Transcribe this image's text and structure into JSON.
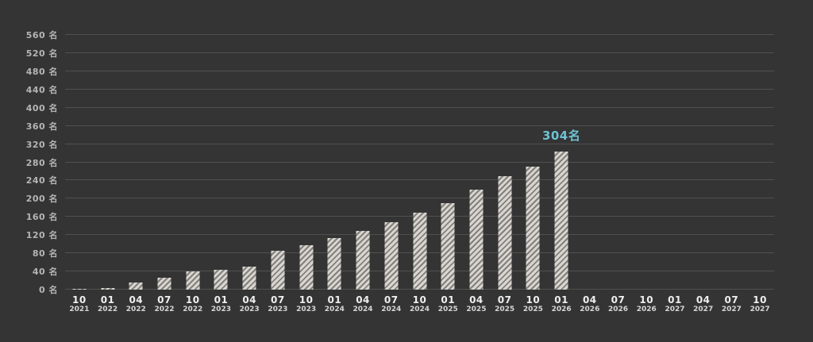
{
  "chart_data": {
    "type": "bar",
    "title": "",
    "xlabel": "",
    "ylabel": "",
    "y_unit": "名",
    "ylim": [
      0,
      560
    ],
    "yticks": [
      0,
      40,
      80,
      120,
      160,
      200,
      240,
      280,
      320,
      360,
      400,
      440,
      480,
      520,
      560
    ],
    "grid": true,
    "legend": false,
    "categories": [
      {
        "month": "10",
        "year": "2021"
      },
      {
        "month": "01",
        "year": "2022"
      },
      {
        "month": "04",
        "year": "2022"
      },
      {
        "month": "07",
        "year": "2022"
      },
      {
        "month": "10",
        "year": "2022"
      },
      {
        "month": "01",
        "year": "2023"
      },
      {
        "month": "04",
        "year": "2023"
      },
      {
        "month": "07",
        "year": "2023"
      },
      {
        "month": "10",
        "year": "2023"
      },
      {
        "month": "01",
        "year": "2024"
      },
      {
        "month": "04",
        "year": "2024"
      },
      {
        "month": "07",
        "year": "2024"
      },
      {
        "month": "10",
        "year": "2024"
      },
      {
        "month": "01",
        "year": "2025"
      },
      {
        "month": "04",
        "year": "2025"
      },
      {
        "month": "07",
        "year": "2025"
      },
      {
        "month": "10",
        "year": "2025"
      },
      {
        "month": "01",
        "year": "2026"
      },
      {
        "month": "04",
        "year": "2026"
      },
      {
        "month": "07",
        "year": "2026"
      },
      {
        "month": "10",
        "year": "2026"
      },
      {
        "month": "01",
        "year": "2027"
      },
      {
        "month": "04",
        "year": "2027"
      },
      {
        "month": "07",
        "year": "2027"
      },
      {
        "month": "10",
        "year": "2027"
      }
    ],
    "values": [
      1,
      3,
      15,
      26,
      40,
      44,
      50,
      85,
      98,
      114,
      129,
      148,
      169,
      191,
      220,
      249,
      270,
      304,
      null,
      null,
      null,
      null,
      null,
      null,
      null
    ],
    "annotation": {
      "text": "304名",
      "value": 304,
      "category_index": 17,
      "color": "#6ec2d4"
    },
    "colors": {
      "background": "#343434",
      "gridline": "#505050",
      "bar_base": "#d9d6d1",
      "bar_stripe": "#83807b",
      "ytick_text": "#b5b5b5",
      "xtick_month": "#efefef",
      "xtick_year": "#d6d6d6"
    }
  }
}
